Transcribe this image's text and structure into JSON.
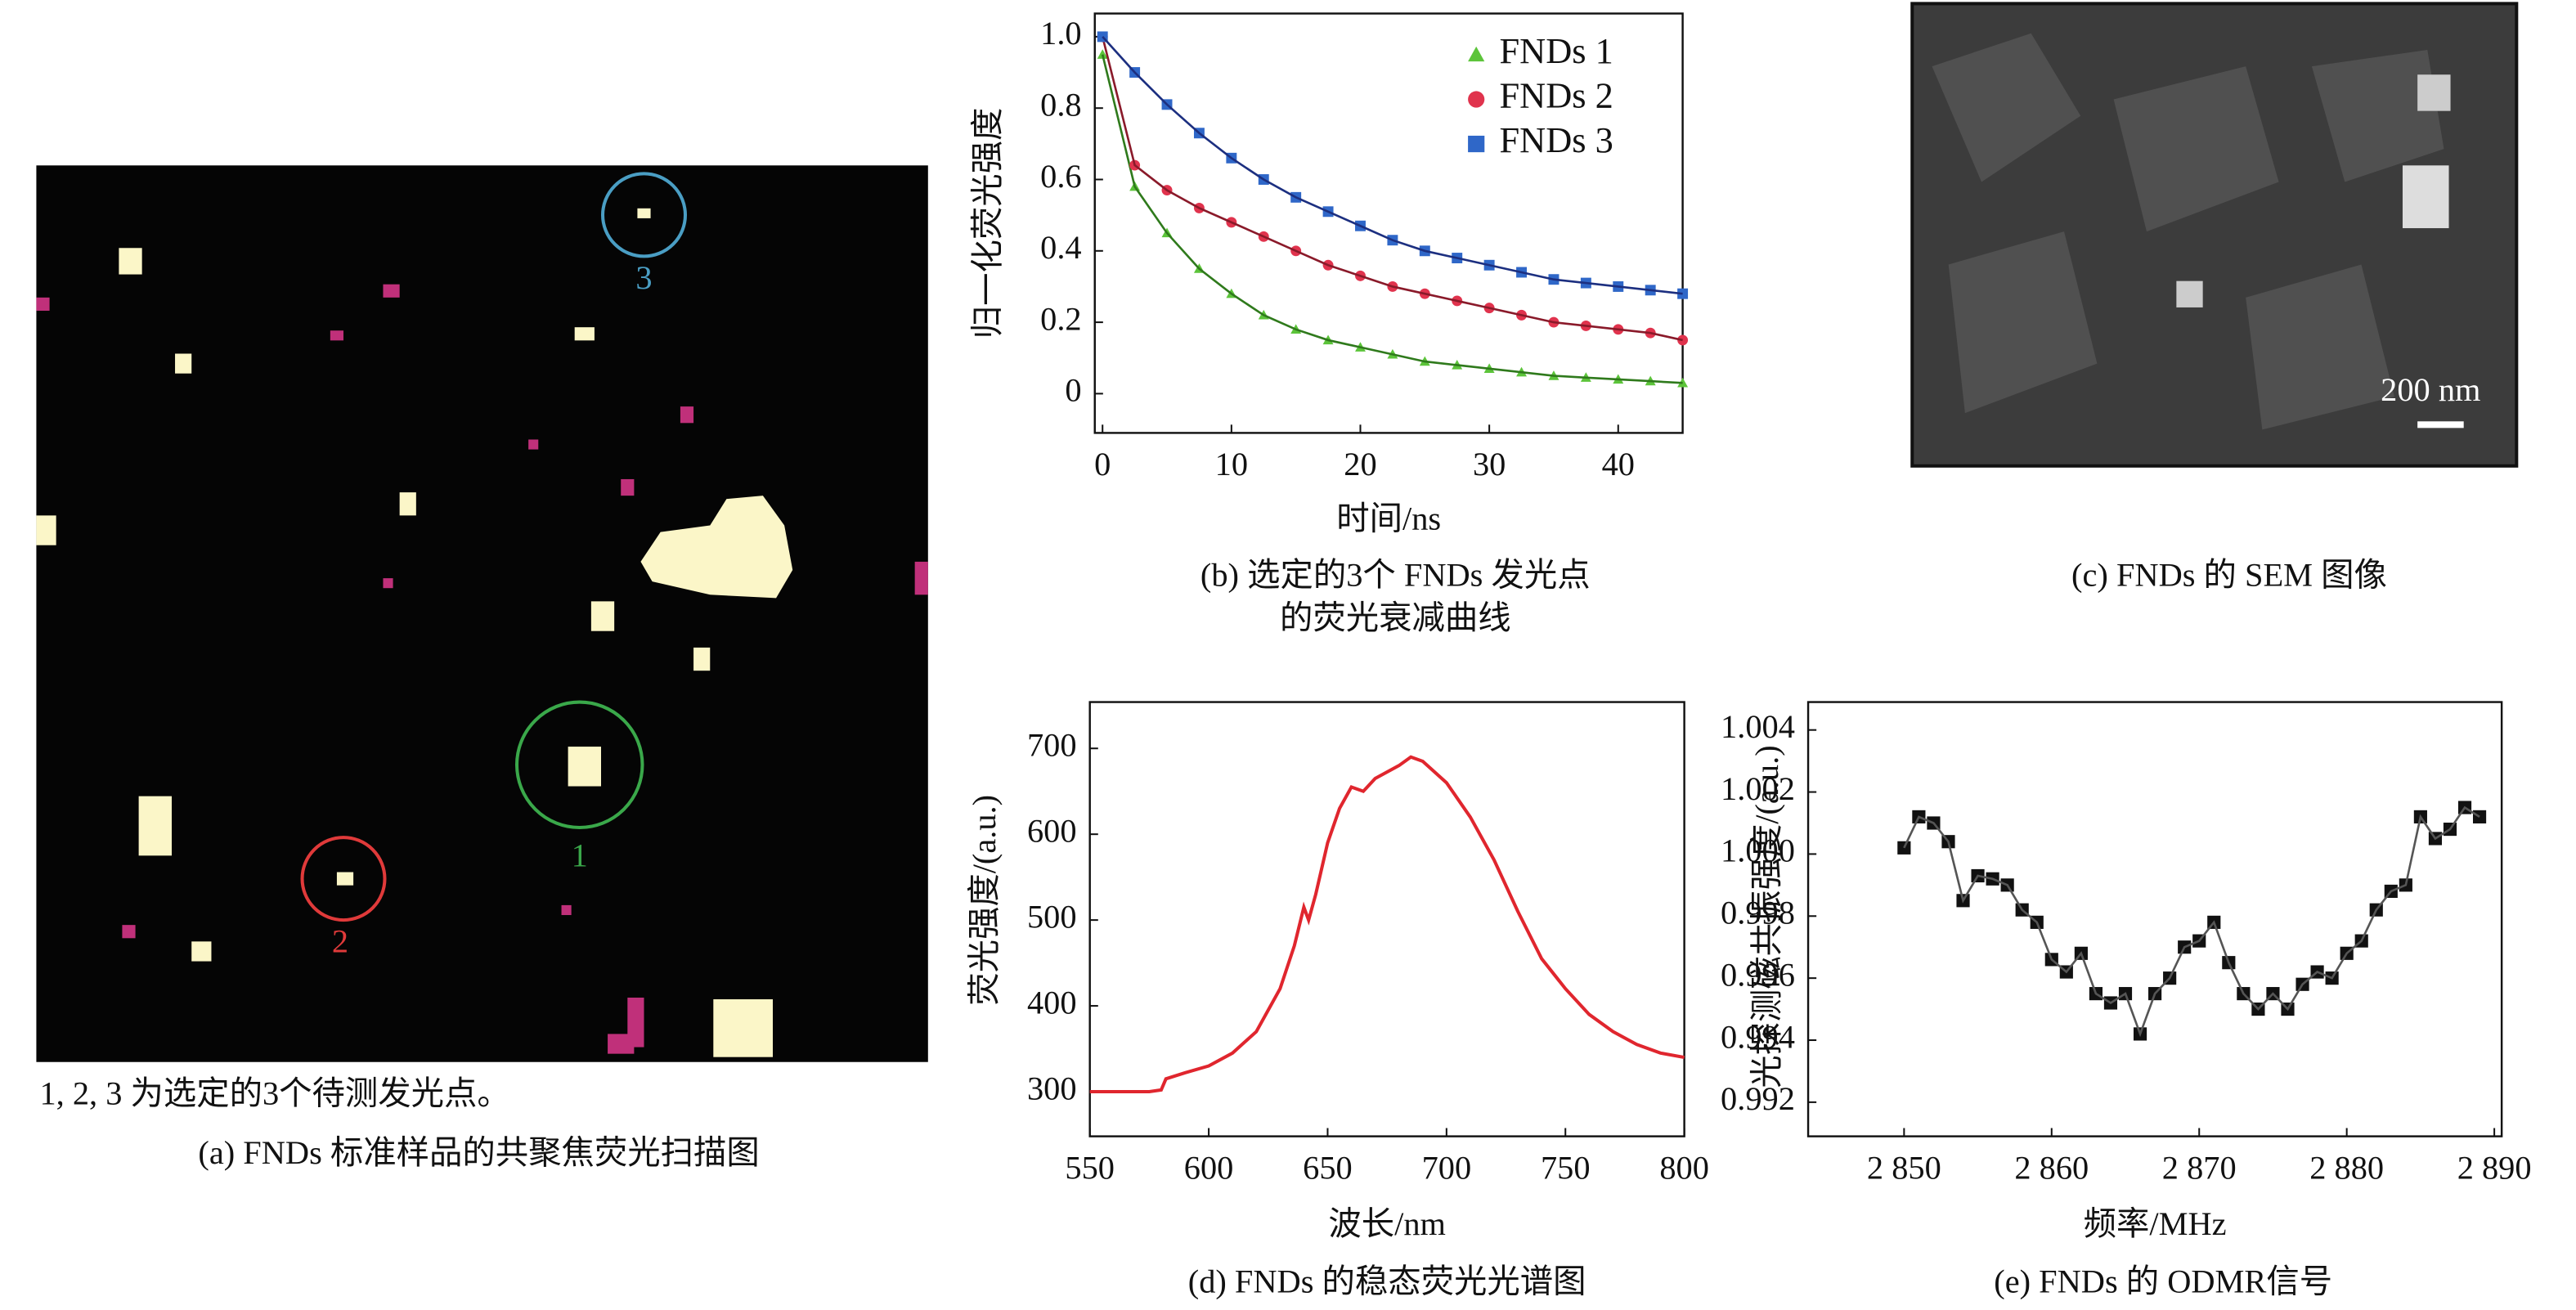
{
  "scan_image": {
    "markers": [
      "1",
      "2",
      "3"
    ],
    "note": "1, 2, 3 为选定的3个待测发光点。",
    "caption": "(a) FNDs 标准样品的共聚焦荧光扫描图"
  },
  "sem_image": {
    "scale_bar": "200 nm",
    "caption": "(c) FNDs 的 SEM 图像"
  },
  "chart_data": [
    {
      "type": "scatter",
      "xlabel": "时间/ns",
      "ylabel": "归一化荧光强度",
      "caption": [
        "(b) 选定的3个 FNDs 发光点",
        "的荧光衰减曲线"
      ],
      "x": [
        0,
        2.5,
        5,
        7.5,
        10,
        12.5,
        15,
        17.5,
        20,
        22.5,
        25,
        27.5,
        30,
        32.5,
        35,
        37.5,
        40,
        42.5,
        45
      ],
      "series": [
        {
          "name": "FNDs 1",
          "color": "#5cc43a",
          "line_color": "#2f7a1c",
          "marker": "triangle",
          "values": [
            0.95,
            0.58,
            0.45,
            0.35,
            0.28,
            0.22,
            0.18,
            0.15,
            0.13,
            0.11,
            0.09,
            0.08,
            0.07,
            0.06,
            0.05,
            0.045,
            0.04,
            0.035,
            0.03
          ]
        },
        {
          "name": "FNDs 2",
          "color": "#e0334d",
          "line_color": "#8a1a2a",
          "marker": "circle",
          "values": [
            1.0,
            0.64,
            0.57,
            0.52,
            0.48,
            0.44,
            0.4,
            0.36,
            0.33,
            0.3,
            0.28,
            0.26,
            0.24,
            0.22,
            0.2,
            0.19,
            0.18,
            0.17,
            0.15
          ]
        },
        {
          "name": "FNDs 3",
          "color": "#2f67c8",
          "line_color": "#1c2f80",
          "marker": "square",
          "values": [
            1.0,
            0.9,
            0.81,
            0.73,
            0.66,
            0.6,
            0.55,
            0.51,
            0.47,
            0.43,
            0.4,
            0.38,
            0.36,
            0.34,
            0.32,
            0.31,
            0.3,
            0.29,
            0.28
          ]
        }
      ],
      "line": true,
      "legend": "upper right",
      "xlim": [
        -0.6,
        45
      ],
      "ylim": [
        -0.11,
        1.065
      ],
      "xticks": [
        0,
        10,
        20,
        30,
        40
      ],
      "yticks": [
        0,
        0.2,
        0.4,
        0.6,
        0.8,
        {
          "value": 1,
          "label": "1.0"
        }
      ]
    },
    {
      "type": "line",
      "xlabel": "波长/nm",
      "ylabel": "荧光强度/(a.u.)",
      "caption": "(d) FNDs 的稳态荧光光谱图",
      "color": "#e0262e",
      "x": [
        550,
        575,
        580,
        582,
        590,
        600,
        610,
        620,
        630,
        636,
        640,
        642,
        645,
        650,
        655,
        660,
        665,
        670,
        680,
        685,
        690,
        700,
        710,
        720,
        730,
        740,
        750,
        760,
        770,
        780,
        790,
        800
      ],
      "values": [
        300,
        300,
        302,
        315,
        322,
        330,
        345,
        370,
        420,
        470,
        515,
        500,
        530,
        590,
        630,
        655,
        650,
        665,
        680,
        690,
        685,
        660,
        620,
        570,
        510,
        455,
        420,
        390,
        370,
        355,
        345,
        340
      ],
      "xlim": [
        550,
        800
      ],
      "ylim": [
        248,
        754
      ],
      "xticks": [
        550,
        600,
        650,
        700,
        750,
        800
      ],
      "yticks": [
        300,
        400,
        500,
        600,
        700
      ]
    },
    {
      "type": "line",
      "xlabel": "频率/MHz",
      "ylabel": "光探测磁共振强度/(a.u.)",
      "caption": "(e) FNDs 的 ODMR信号",
      "color": "#111111",
      "line_color": "#555555",
      "marker": "square",
      "x": [
        2850,
        2851,
        2852,
        2853,
        2854,
        2855,
        2856,
        2857,
        2858,
        2859,
        2860,
        2861,
        2862,
        2863,
        2864,
        2865,
        2866,
        2867,
        2868,
        2869,
        2870,
        2871,
        2872,
        2873,
        2874,
        2875,
        2876,
        2877,
        2878,
        2879,
        2880,
        2881,
        2882,
        2883,
        2884,
        2885,
        2886,
        2887,
        2888,
        2889
      ],
      "values": [
        1.0002,
        1.0012,
        1.001,
        1.0004,
        0.9985,
        0.9993,
        0.9992,
        0.999,
        0.9982,
        0.9978,
        0.9966,
        0.9962,
        0.9968,
        0.9955,
        0.9952,
        0.9955,
        0.9942,
        0.9955,
        0.996,
        0.997,
        0.9972,
        0.9978,
        0.9965,
        0.9955,
        0.995,
        0.9955,
        0.995,
        0.9958,
        0.9962,
        0.996,
        0.9968,
        0.9972,
        0.9982,
        0.9988,
        0.999,
        1.0012,
        1.0005,
        1.0008,
        1.0015,
        1.0012
      ],
      "xlim": [
        2843.5,
        2890.5
      ],
      "ylim": [
        0.9909,
        1.0049
      ],
      "xticks": [
        {
          "value": 2850,
          "label": "2 850"
        },
        {
          "value": 2860,
          "label": "2 860"
        },
        {
          "value": 2870,
          "label": "2 870"
        },
        {
          "value": 2880,
          "label": "2 880"
        },
        {
          "value": 2890,
          "label": "2 890"
        }
      ],
      "yticks": [
        0.992,
        0.994,
        0.996,
        0.998,
        {
          "value": 1,
          "label": "1.000"
        },
        1.002,
        1.004
      ]
    }
  ]
}
